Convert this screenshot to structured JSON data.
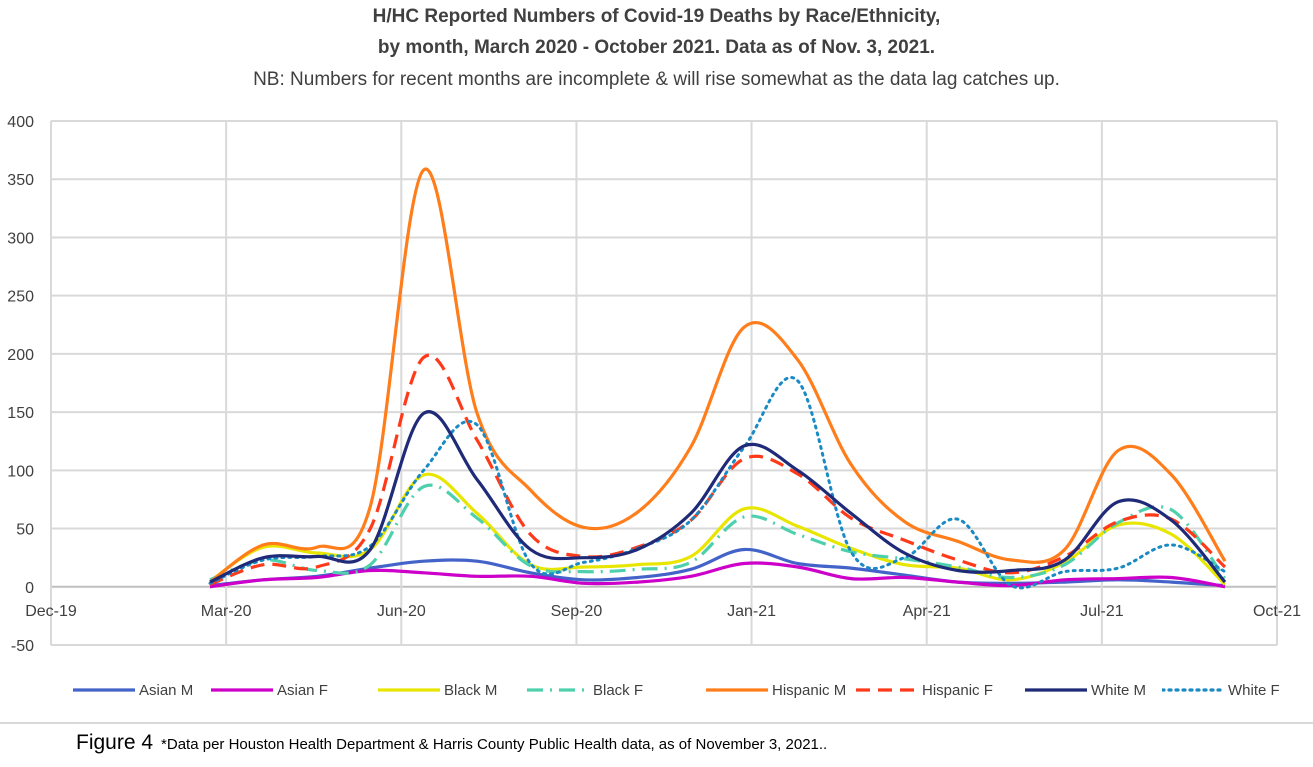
{
  "chart_data": {
    "type": "line",
    "title": "H/HC Reported Numbers of Covid-19 Deaths by Race/Ethnicity,",
    "title_line2": "by month, March 2020 - October 2021. Data as of Nov. 3, 2021.",
    "subtitle": "NB: Numbers for recent months are incomplete & will rise somewhat as the data lag catches up.",
    "xlabel": "",
    "ylabel": "",
    "ylim": [
      -50,
      400
    ],
    "y_ticks": [
      "400",
      "350",
      "300",
      "250",
      "200",
      "150",
      "100",
      "50",
      "0",
      "-50"
    ],
    "x_ticks": [
      "Dec-19",
      "Mar-20",
      "Jun-20",
      "Sep-20",
      "Jan-21",
      "Apr-21",
      "Jul-21",
      "Oct-21"
    ],
    "grid": true,
    "legend_position": "bottom",
    "categories": [
      "Mar-20",
      "Apr-20",
      "May-20",
      "Jun-20",
      "Jul-20",
      "Aug-20",
      "Sep-20",
      "Oct-20",
      "Nov-20",
      "Dec-20",
      "Jan-21",
      "Feb-21",
      "Mar-21",
      "Apr-21",
      "May-21",
      "Jun-21",
      "Jul-21",
      "Aug-21",
      "Sep-21",
      "Oct-21"
    ],
    "series": [
      {
        "name": "Asian M",
        "color": "#4363c9",
        "dash": "solid",
        "values": [
          1,
          6,
          9,
          16,
          22,
          22,
          12,
          6,
          8,
          15,
          32,
          20,
          16,
          10,
          4,
          3,
          4,
          6,
          4,
          1
        ]
      },
      {
        "name": "Asian F",
        "color": "#cc00c8",
        "dash": "solid",
        "values": [
          0,
          6,
          8,
          14,
          12,
          9,
          9,
          3,
          4,
          9,
          20,
          17,
          7,
          8,
          4,
          1,
          6,
          7,
          8,
          0
        ]
      },
      {
        "name": "Black M",
        "color": "#e8e600",
        "dash": "solid",
        "values": [
          5,
          34,
          29,
          32,
          96,
          63,
          19,
          17,
          19,
          26,
          67,
          52,
          33,
          19,
          16,
          6,
          21,
          53,
          45,
          2
        ]
      },
      {
        "name": "Black F",
        "color": "#4fd0ad",
        "dash": "dashdot",
        "values": [
          6,
          23,
          14,
          19,
          86,
          59,
          18,
          13,
          15,
          21,
          60,
          45,
          30,
          24,
          17,
          8,
          19,
          55,
          66,
          7
        ]
      },
      {
        "name": "Hispanic M",
        "color": "#ff7d1a",
        "dash": "solid",
        "values": [
          4,
          36,
          34,
          69,
          358,
          149,
          83,
          51,
          64,
          120,
          223,
          195,
          105,
          56,
          39,
          23,
          32,
          117,
          96,
          22
        ]
      },
      {
        "name": "Hispanic F",
        "color": "#ff3a1a",
        "dash": "dashed",
        "values": [
          2,
          19,
          17,
          50,
          197,
          126,
          45,
          26,
          34,
          57,
          110,
          97,
          59,
          40,
          23,
          12,
          26,
          56,
          58,
          17
        ]
      },
      {
        "name": "White M",
        "color": "#1f2a78",
        "dash": "solid",
        "values": [
          4,
          25,
          26,
          32,
          149,
          92,
          32,
          25,
          32,
          63,
          121,
          100,
          63,
          29,
          14,
          14,
          23,
          73,
          57,
          4
        ]
      },
      {
        "name": "White F",
        "color": "#1a8ac4",
        "dash": "dotted",
        "values": [
          3,
          23,
          26,
          35,
          100,
          139,
          20,
          21,
          33,
          57,
          120,
          177,
          30,
          25,
          58,
          1,
          13,
          16,
          36,
          13
        ]
      }
    ]
  },
  "footer": {
    "figure_label": "Figure 4",
    "note": "*Data per Houston Health Department & Harris County Public Health data, as of November 3, 2021.."
  }
}
